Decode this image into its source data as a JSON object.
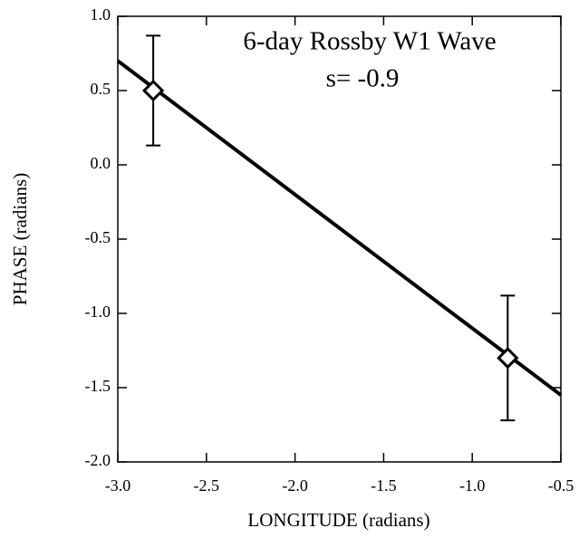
{
  "chart_data": {
    "type": "scatter",
    "annotations": [
      "6-day Rossby W1 Wave",
      "s= -0.9"
    ],
    "x_label": "LONGITUDE (radians)",
    "y_label": "PHASE (radians)",
    "xlim": [
      -3.0,
      -0.5
    ],
    "ylim": [
      -2.0,
      1.0
    ],
    "xticks": [
      {
        "value": -3,
        "label": "-3.0"
      },
      {
        "value": -2.5,
        "label": "-2.5"
      },
      {
        "value": -2,
        "label": "-2.0"
      },
      {
        "value": -1.5,
        "label": "-1.5"
      },
      {
        "value": -1,
        "label": "-1.0"
      },
      {
        "value": -0.5,
        "label": "-0.5"
      }
    ],
    "yticks": [
      {
        "value": -2,
        "label": "-2.0"
      },
      {
        "value": -1.5,
        "label": "-1.5"
      },
      {
        "value": -1,
        "label": "-1.0"
      },
      {
        "value": -0.5,
        "label": "-0.5"
      },
      {
        "value": 0,
        "label": "0.0"
      },
      {
        "value": 0.5,
        "label": "0.5"
      },
      {
        "value": 1,
        "label": "1.0"
      }
    ],
    "points": {
      "x": [
        -2.8,
        -0.8
      ],
      "values": [
        0.5,
        -1.3
      ],
      "errors": [
        0.37,
        0.42
      ],
      "color": "#000000"
    },
    "fit": {
      "x": [
        -3.0,
        -0.5
      ],
      "values": [
        0.7,
        -1.55
      ],
      "color": "#000000"
    }
  }
}
